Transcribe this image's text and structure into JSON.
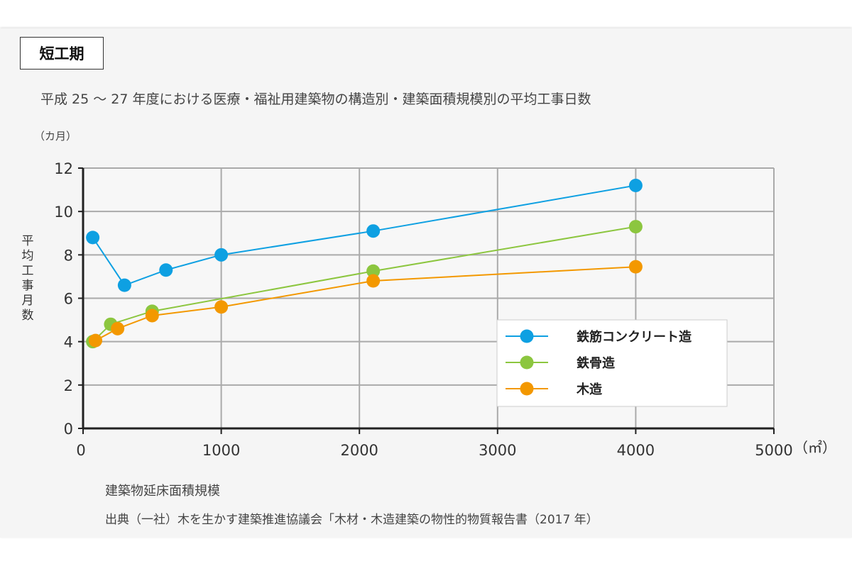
{
  "badge": "短工期",
  "chart_data": {
    "type": "line",
    "title": "平成 25 〜 27 年度における医療・福祉用建築物の構造別・建築面積規模別の平均工事日数",
    "ylabel": "平均工事月数",
    "yunit": "（カ月）",
    "xlabel": "建築物延床面積規模",
    "xunit": "（㎡）",
    "xlim": [
      0,
      5000
    ],
    "ylim": [
      0,
      12
    ],
    "xticks": [
      0,
      1000,
      2000,
      3000,
      4000,
      5000
    ],
    "yticks": [
      0,
      2,
      4,
      6,
      8,
      10,
      12
    ],
    "grid": true,
    "legend_position": "bottom-right",
    "series": [
      {
        "name": "鉄筋コンクリート造",
        "color": "#0ea0e2",
        "x": [
          70,
          300,
          600,
          1000,
          2100,
          4000
        ],
        "y": [
          8.8,
          6.6,
          7.3,
          8.0,
          9.1,
          11.2
        ]
      },
      {
        "name": "鉄骨造",
        "color": "#8cc63f",
        "x": [
          70,
          200,
          500,
          2100,
          4000
        ],
        "y": [
          4.0,
          4.8,
          5.4,
          7.25,
          9.3
        ]
      },
      {
        "name": "木造",
        "color": "#f39800",
        "x": [
          90,
          250,
          500,
          1000,
          2100,
          4000
        ],
        "y": [
          4.05,
          4.6,
          5.2,
          5.6,
          6.8,
          7.45
        ]
      }
    ]
  },
  "source": "出典（一社）木を生かす建築推進協議会「木材・木造建築の物性的物質報告書（2017 年）"
}
